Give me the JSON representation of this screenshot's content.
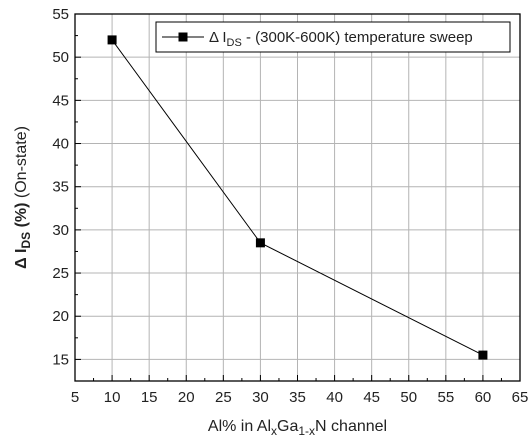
{
  "chart_data": {
    "type": "line",
    "x": [
      10,
      30,
      60
    ],
    "series": [
      {
        "name": "Δ I_DS - (300K-600K) temperature sweep",
        "values": [
          52.0,
          28.5,
          15.5
        ]
      }
    ],
    "xlim": [
      5,
      65
    ],
    "ylim": [
      12.5,
      55
    ],
    "xticks": [
      "5",
      "10",
      "15",
      "20",
      "25",
      "30",
      "35",
      "40",
      "45",
      "50",
      "55",
      "60",
      "65"
    ],
    "yticks": [
      "15",
      "20",
      "25",
      "30",
      "35",
      "40",
      "45",
      "50",
      "55"
    ],
    "xlabel": {
      "pre": "Al% in Al",
      "sub1": "x",
      "mid": "Ga",
      "sub2": "1-x",
      "post": "N channel"
    },
    "ylabel": {
      "pre": "Δ I",
      "sub": "DS",
      "bold_post": " (%)",
      "post": " (On-state)"
    },
    "legend": {
      "pre": "Δ I",
      "sub": "DS",
      "post": " - (300K-600K) temperature sweep",
      "position": "top-right"
    },
    "grid": true,
    "colors": {
      "line": "#000000",
      "grid": "#b4b4b4",
      "axis": "#000000"
    }
  }
}
